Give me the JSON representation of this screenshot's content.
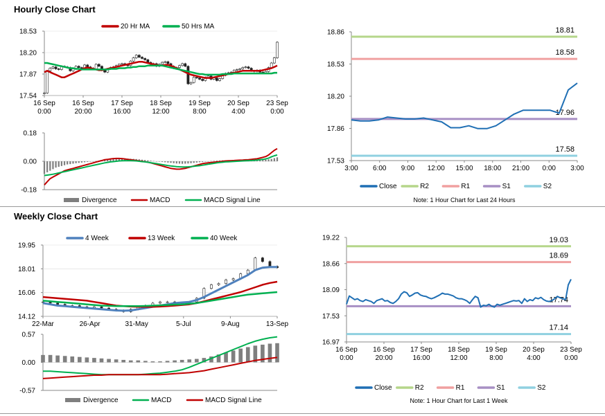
{
  "sections": {
    "hourly_title": "Hourly Close Chart",
    "weekly_title": "Weekly Close Chart"
  },
  "colors": {
    "ma_red": "#c00000",
    "ma_green": "#00b050",
    "ma_blue": "#4f81bd",
    "close": "#1f6fb4",
    "r2": "#b5d68a",
    "r1": "#f0a0a0",
    "s1": "#a78fc4",
    "s2": "#8fd0e0",
    "divergence": "#7f7f7f",
    "axis": "#888888"
  },
  "chart_data": [
    {
      "id": "hourly-price",
      "type": "line",
      "subtype": "candlestick-with-moving-averages",
      "legend": [
        "20 Hr MA",
        "50 Hrs MA"
      ],
      "legend_position": "top",
      "yticks": [
        "18.53",
        "18.20",
        "17.87",
        "17.54"
      ],
      "ylim": [
        17.54,
        18.53
      ],
      "xticks": [
        [
          "16 Sep",
          "0:00"
        ],
        [
          "16 Sep",
          "20:00"
        ],
        [
          "17 Sep",
          "16:00"
        ],
        [
          "18 Sep",
          "12:00"
        ],
        [
          "19 Sep",
          "8:00"
        ],
        [
          "20 Sep",
          "4:00"
        ],
        [
          "23 Sep",
          "0:00"
        ]
      ],
      "close": [
        17.58,
        17.92,
        17.96,
        17.98,
        17.95,
        17.94,
        17.99,
        17.98,
        17.97,
        17.92,
        17.95,
        17.99,
        17.97,
        17.96,
        18.01,
        17.98,
        17.96,
        17.95,
        18.02,
        17.99,
        17.93,
        17.9,
        17.95,
        17.97,
        17.98,
        18.0,
        18.02,
        18.03,
        18.01,
        18.0,
        18.07,
        18.12,
        18.16,
        18.13,
        18.11,
        18.09,
        18.05,
        18.02,
        18.03,
        17.99,
        18.02,
        18.05,
        18.06,
        18.03,
        17.99,
        17.96,
        17.97,
        18.0,
        18.03,
        17.99,
        17.72,
        17.74,
        17.82,
        17.81,
        17.79,
        17.77,
        17.82,
        17.84,
        17.79,
        17.81,
        17.77,
        17.8,
        17.85,
        17.88,
        17.89,
        17.9,
        17.93,
        17.94,
        17.95,
        17.97,
        17.98,
        17.96,
        17.92,
        17.91,
        17.93,
        17.9,
        17.89,
        17.91,
        17.97,
        18.04,
        18.12,
        18.36
      ],
      "ma20": [
        17.9,
        17.92,
        17.9,
        17.88,
        17.86,
        17.84,
        17.82,
        17.82,
        17.84,
        17.86,
        17.88,
        17.9,
        17.92,
        17.94,
        17.96,
        17.97,
        17.96,
        17.95,
        17.94,
        17.93,
        17.93,
        17.94,
        17.95,
        17.96,
        17.97,
        17.98,
        17.99,
        18.0,
        18.01,
        18.02,
        18.03,
        18.04,
        18.05,
        18.06,
        18.06,
        18.05,
        18.04,
        18.03,
        18.02,
        18.01,
        18.0,
        18.0,
        18.01,
        18.01,
        18.0,
        17.98,
        17.96,
        17.94,
        17.92,
        17.9,
        17.88,
        17.86,
        17.85,
        17.84,
        17.83,
        17.82,
        17.81,
        17.81,
        17.81,
        17.82,
        17.83,
        17.84,
        17.85,
        17.86,
        17.87,
        17.88,
        17.89,
        17.9,
        17.91,
        17.92,
        17.92,
        17.92,
        17.92,
        17.92,
        17.92,
        17.92,
        17.93,
        17.94,
        17.95,
        17.96,
        17.98,
        18.0
      ],
      "ma50": [
        18.04,
        18.04,
        18.03,
        18.02,
        18.01,
        18.0,
        17.99,
        17.98,
        17.97,
        17.96,
        17.96,
        17.95,
        17.95,
        17.94,
        17.94,
        17.94,
        17.94,
        17.94,
        17.94,
        17.94,
        17.94,
        17.94,
        17.94,
        17.95,
        17.95,
        17.95,
        17.96,
        17.96,
        17.96,
        17.97,
        17.97,
        17.98,
        17.98,
        17.99,
        17.99,
        17.99,
        18.0,
        18.0,
        18.0,
        18.0,
        18.0,
        18.0,
        17.99,
        17.98,
        17.97,
        17.96,
        17.95,
        17.94,
        17.93,
        17.92,
        17.91,
        17.9,
        17.89,
        17.88,
        17.87,
        17.87,
        17.86,
        17.86,
        17.86,
        17.86,
        17.86,
        17.86,
        17.87,
        17.87,
        17.87,
        17.87,
        17.88,
        17.88,
        17.88,
        17.88,
        17.88,
        17.88,
        17.88,
        17.88,
        17.88,
        17.88,
        17.88,
        17.88,
        17.88,
        17.88,
        17.89,
        17.89
      ]
    },
    {
      "id": "hourly-macd",
      "type": "bar",
      "subtype": "macd",
      "legend": [
        "Divergence",
        "MACD",
        "MACD Signal Line"
      ],
      "legend_position": "bottom",
      "yticks": [
        "0.18",
        "0.00",
        "-0.18"
      ],
      "ylim": [
        -0.18,
        0.18
      ],
      "divergence": [
        -0.08,
        -0.07,
        -0.06,
        -0.05,
        -0.04,
        -0.035,
        -0.03,
        -0.025,
        -0.02,
        -0.018,
        -0.015,
        -0.012,
        -0.01,
        -0.008,
        -0.006,
        -0.004,
        -0.002,
        0.0,
        0.002,
        0.004,
        0.006,
        0.008,
        0.01,
        0.012,
        0.014,
        0.016,
        0.017,
        0.018,
        0.018,
        0.017,
        0.016,
        0.015,
        0.014,
        0.012,
        0.01,
        0.008,
        0.006,
        0.004,
        0.002,
        0.0,
        -0.002,
        -0.004,
        -0.006,
        -0.008,
        -0.01,
        -0.012,
        -0.014,
        -0.015,
        -0.016,
        -0.015,
        -0.014,
        -0.012,
        -0.01,
        -0.008,
        -0.006,
        -0.004,
        -0.002,
        0.0,
        0.002,
        0.003,
        0.004,
        0.005,
        0.006,
        0.006,
        0.006,
        0.005,
        0.004,
        0.004,
        0.003,
        0.003,
        0.002,
        0.002,
        0.002,
        0.003,
        0.004,
        0.006,
        0.008,
        0.01,
        0.012,
        0.015,
        0.02,
        0.025
      ],
      "macd": [
        -0.15,
        -0.13,
        -0.11,
        -0.1,
        -0.09,
        -0.08,
        -0.07,
        -0.06,
        -0.055,
        -0.05,
        -0.045,
        -0.04,
        -0.035,
        -0.03,
        -0.025,
        -0.02,
        -0.015,
        -0.01,
        -0.005,
        0.0,
        0.005,
        0.01,
        0.012,
        0.015,
        0.017,
        0.018,
        0.018,
        0.017,
        0.015,
        0.012,
        0.01,
        0.008,
        0.005,
        0.002,
        0.0,
        -0.003,
        -0.006,
        -0.01,
        -0.015,
        -0.02,
        -0.025,
        -0.03,
        -0.035,
        -0.04,
        -0.045,
        -0.048,
        -0.05,
        -0.05,
        -0.048,
        -0.045,
        -0.04,
        -0.035,
        -0.03,
        -0.025,
        -0.02,
        -0.015,
        -0.012,
        -0.01,
        -0.008,
        -0.006,
        -0.004,
        -0.002,
        0.0,
        0.002,
        0.003,
        0.004,
        0.005,
        0.006,
        0.007,
        0.008,
        0.009,
        0.01,
        0.012,
        0.014,
        0.016,
        0.02,
        0.025,
        0.03,
        0.04,
        0.055,
        0.07,
        0.08
      ],
      "signal": [
        -0.09,
        -0.088,
        -0.085,
        -0.082,
        -0.078,
        -0.074,
        -0.07,
        -0.066,
        -0.062,
        -0.058,
        -0.054,
        -0.05,
        -0.046,
        -0.042,
        -0.038,
        -0.034,
        -0.03,
        -0.026,
        -0.022,
        -0.018,
        -0.014,
        -0.01,
        -0.007,
        -0.004,
        -0.002,
        0.0,
        0.002,
        0.003,
        0.004,
        0.004,
        0.004,
        0.003,
        0.002,
        0.0,
        -0.002,
        -0.004,
        -0.006,
        -0.009,
        -0.012,
        -0.015,
        -0.018,
        -0.021,
        -0.024,
        -0.027,
        -0.03,
        -0.032,
        -0.034,
        -0.035,
        -0.036,
        -0.036,
        -0.035,
        -0.034,
        -0.032,
        -0.03,
        -0.028,
        -0.025,
        -0.022,
        -0.019,
        -0.016,
        -0.013,
        -0.01,
        -0.008,
        -0.006,
        -0.004,
        -0.003,
        -0.002,
        -0.001,
        0.0,
        0.001,
        0.002,
        0.003,
        0.004,
        0.005,
        0.006,
        0.008,
        0.01,
        0.012,
        0.015,
        0.02,
        0.028,
        0.035,
        0.04
      ]
    },
    {
      "id": "hourly-close-levels",
      "type": "line",
      "subtype": "close-with-pivot-levels",
      "yticks": [
        "18.86",
        "18.53",
        "18.20",
        "17.86",
        "17.53"
      ],
      "ylim": [
        17.53,
        18.86
      ],
      "xticks": [
        "3:00",
        "6:00",
        "9:00",
        "12:00",
        "15:00",
        "18:00",
        "21:00",
        "0:00",
        "3:00"
      ],
      "levels": {
        "R2": 18.81,
        "R1": 18.58,
        "S1": 17.96,
        "S2": 17.58
      },
      "level_labels": {
        "R2": "18.81",
        "R1": "18.58",
        "S1": "17.96",
        "S2": "17.58"
      },
      "close": [
        17.95,
        17.94,
        17.94,
        17.95,
        17.98,
        17.97,
        17.96,
        17.96,
        17.97,
        17.95,
        17.93,
        17.87,
        17.87,
        17.89,
        17.86,
        17.86,
        17.89,
        17.95,
        18.01,
        18.05,
        18.05,
        18.05,
        18.05,
        18.02,
        18.26,
        18.33
      ],
      "legend": [
        "Close",
        "R2",
        "R1",
        "S1",
        "S2"
      ],
      "note": "Note: 1 Hour Chart for Last 24 Hours"
    },
    {
      "id": "weekly-price",
      "type": "line",
      "subtype": "candlestick-with-moving-averages",
      "legend": [
        "4 Week",
        "13 Week",
        "40 Week"
      ],
      "legend_position": "top",
      "yticks": [
        "19.95",
        "18.01",
        "16.06",
        "14.12"
      ],
      "ylim": [
        14.12,
        19.95
      ],
      "xticks": [
        "22-Mar",
        "26-Apr",
        "31-May",
        "5-Jul",
        "9-Aug",
        "13-Sep"
      ],
      "close": [
        15.3,
        15.2,
        15.1,
        15.0,
        15.0,
        14.9,
        14.8,
        14.9,
        14.8,
        14.7,
        14.6,
        14.5,
        14.7,
        14.9,
        15.0,
        15.2,
        15.3,
        15.3,
        15.2,
        15.2,
        15.3,
        15.6,
        16.4,
        16.7,
        16.8,
        17.1,
        17.2,
        17.6,
        17.9,
        18.9,
        18.6,
        18.2,
        18.1
      ],
      "ma4": [
        15.2,
        15.1,
        15.0,
        14.95,
        14.9,
        14.85,
        14.8,
        14.75,
        14.7,
        14.65,
        14.6,
        14.58,
        14.6,
        14.7,
        14.8,
        14.9,
        15.0,
        15.1,
        15.2,
        15.25,
        15.3,
        15.45,
        15.7,
        16.0,
        16.3,
        16.6,
        16.9,
        17.2,
        17.5,
        17.9,
        18.1,
        18.15,
        18.15
      ],
      "ma13": [
        15.7,
        15.65,
        15.6,
        15.55,
        15.5,
        15.45,
        15.4,
        15.3,
        15.2,
        15.1,
        15.0,
        14.95,
        14.92,
        14.9,
        14.9,
        14.9,
        14.92,
        14.95,
        15.0,
        15.05,
        15.1,
        15.2,
        15.35,
        15.5,
        15.65,
        15.8,
        15.95,
        16.1,
        16.3,
        16.5,
        16.7,
        16.85,
        16.95
      ],
      "ma40": [
        15.4,
        15.35,
        15.3,
        15.25,
        15.2,
        15.15,
        15.1,
        15.05,
        15.0,
        14.98,
        14.95,
        14.95,
        14.95,
        14.95,
        14.97,
        15.0,
        15.02,
        15.05,
        15.08,
        15.1,
        15.15,
        15.2,
        15.3,
        15.4,
        15.5,
        15.6,
        15.7,
        15.8,
        15.9,
        15.95,
        16.0,
        16.05,
        16.1
      ]
    },
    {
      "id": "weekly-macd",
      "type": "bar",
      "subtype": "macd",
      "legend": [
        "Divergence",
        "MACD",
        "MACD Signal Line"
      ],
      "legend_position": "bottom",
      "yticks": [
        "0.57",
        "0.00",
        "-0.57"
      ],
      "ylim": [
        -0.57,
        0.57
      ],
      "divergence": [
        0.15,
        0.15,
        0.14,
        0.13,
        0.12,
        0.11,
        0.1,
        0.09,
        0.08,
        0.07,
        0.06,
        0.05,
        0.04,
        0.04,
        0.03,
        0.02,
        0.02,
        0.03,
        0.04,
        0.05,
        0.06,
        0.07,
        0.09,
        0.12,
        0.16,
        0.2,
        0.24,
        0.28,
        0.31,
        0.34,
        0.36,
        0.38,
        0.39
      ],
      "macd": [
        -0.18,
        -0.18,
        -0.19,
        -0.2,
        -0.21,
        -0.22,
        -0.23,
        -0.24,
        -0.25,
        -0.25,
        -0.25,
        -0.25,
        -0.25,
        -0.25,
        -0.24,
        -0.23,
        -0.22,
        -0.2,
        -0.18,
        -0.15,
        -0.1,
        -0.04,
        0.02,
        0.08,
        0.14,
        0.2,
        0.26,
        0.32,
        0.38,
        0.43,
        0.47,
        0.5,
        0.52
      ],
      "signal": [
        -0.33,
        -0.32,
        -0.31,
        -0.3,
        -0.29,
        -0.28,
        -0.27,
        -0.26,
        -0.26,
        -0.25,
        -0.25,
        -0.25,
        -0.25,
        -0.25,
        -0.25,
        -0.25,
        -0.25,
        -0.24,
        -0.23,
        -0.22,
        -0.21,
        -0.19,
        -0.17,
        -0.14,
        -0.11,
        -0.08,
        -0.05,
        -0.02,
        0.01,
        0.04,
        0.06,
        0.08,
        0.1
      ]
    },
    {
      "id": "weekly-close-levels",
      "type": "line",
      "subtype": "close-with-pivot-levels",
      "yticks": [
        "19.22",
        "18.66",
        "18.09",
        "17.53",
        "16.97"
      ],
      "ylim": [
        16.97,
        19.22
      ],
      "xticks": [
        [
          "16 Sep",
          "0:00"
        ],
        [
          "16 Sep",
          "20:00"
        ],
        [
          "17 Sep",
          "16:00"
        ],
        [
          "18 Sep",
          "12:00"
        ],
        [
          "19 Sep",
          "8:00"
        ],
        [
          "20 Sep",
          "4:00"
        ],
        [
          "23 Sep",
          "0:00"
        ]
      ],
      "levels": {
        "R2": 19.03,
        "R1": 18.69,
        "S1": 17.74,
        "S2": 17.14
      },
      "level_labels": {
        "R2": "19.03",
        "R1": "18.69",
        "S1": "17.74",
        "S2": "17.14"
      },
      "close": [
        17.78,
        17.96,
        17.92,
        17.88,
        17.9,
        17.86,
        17.84,
        17.88,
        17.86,
        17.84,
        17.8,
        17.86,
        17.88,
        17.9,
        17.85,
        17.86,
        17.82,
        17.8,
        17.84,
        17.9,
        18.0,
        18.05,
        18.03,
        17.95,
        17.98,
        18.02,
        18.03,
        17.98,
        17.96,
        17.95,
        17.92,
        17.9,
        17.92,
        17.95,
        17.98,
        18.02,
        18.0,
        18.0,
        17.98,
        17.96,
        17.92,
        17.9,
        17.9,
        17.88,
        17.85,
        17.8,
        17.88,
        17.95,
        17.92,
        17.72,
        17.76,
        17.75,
        17.78,
        17.74,
        17.72,
        17.78,
        17.76,
        17.78,
        17.8,
        17.82,
        17.84,
        17.86,
        17.85,
        17.86,
        17.8,
        17.9,
        17.84,
        17.88,
        17.86,
        17.92,
        17.9,
        17.93,
        17.88,
        17.85,
        17.84,
        17.86,
        17.9,
        17.95,
        17.92,
        17.9,
        17.88,
        18.2,
        18.32
      ],
      "legend": [
        "Close",
        "R2",
        "R1",
        "S1",
        "S2"
      ],
      "note": "Note: 1 Hour Chart for Last 1 Week"
    }
  ]
}
